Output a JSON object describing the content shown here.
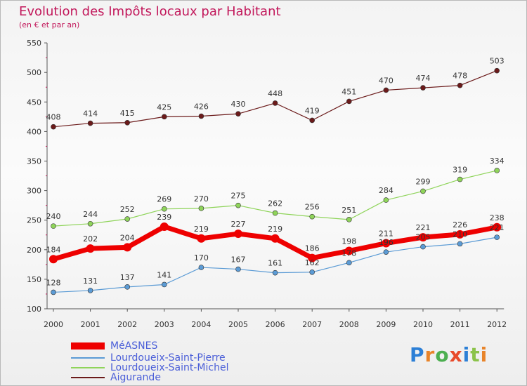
{
  "chart_data": {
    "type": "line",
    "title": "Evolution des Impôts locaux par Habitant",
    "subtitle": "(en € et par an)",
    "x": [
      "2000",
      "2001",
      "2002",
      "2003",
      "2004",
      "2005",
      "2006",
      "2007",
      "2008",
      "2009",
      "2010",
      "2011",
      "2012"
    ],
    "ylim": [
      100,
      550
    ],
    "yticks": [
      100,
      150,
      200,
      250,
      300,
      350,
      400,
      450,
      500,
      550
    ],
    "grid": false,
    "legend_position": "bottom-left",
    "series": [
      {
        "name": "MéASNES",
        "color": "#ee0000",
        "values": [
          184,
          202,
          204,
          239,
          219,
          227,
          219,
          186,
          198,
          211,
          221,
          226,
          238
        ]
      },
      {
        "name": "Lourdoueix-Saint-Pierre",
        "color": "#5b9bd5",
        "values": [
          128,
          131,
          137,
          141,
          170,
          167,
          161,
          162,
          178,
          196,
          205,
          210,
          221
        ]
      },
      {
        "name": "Lourdoueix-Saint-Michel",
        "color": "#8fd45a",
        "values": [
          240,
          244,
          252,
          269,
          270,
          275,
          262,
          256,
          251,
          284,
          299,
          319,
          334
        ]
      },
      {
        "name": "Aigurande",
        "color": "#6b1a1a",
        "values": [
          408,
          414,
          415,
          425,
          426,
          430,
          448,
          419,
          451,
          470,
          474,
          478,
          503
        ]
      }
    ]
  },
  "brand": {
    "text": "Proxiti",
    "letters": [
      "P",
      "r",
      "o",
      "x",
      "i",
      "t",
      "i"
    ],
    "colors": [
      "#2c7fd6",
      "#e8842a",
      "#4caf50",
      "#e84a2a",
      "#2c7fd6",
      "#8bc34a",
      "#e8842a"
    ]
  }
}
